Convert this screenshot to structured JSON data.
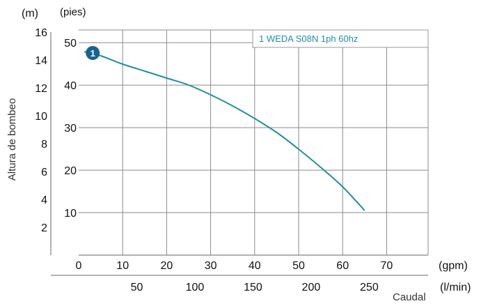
{
  "chart_data": {
    "type": "line",
    "ylabel": "Altura de bombeo",
    "xlabel": "Caudal",
    "y_unit_primary": "(m)",
    "y_unit_secondary": "(pies)",
    "x_unit_primary": "(gpm)",
    "x_unit_secondary": "(l/min)",
    "y_primary_ticks": [
      "2",
      "4",
      "6",
      "8",
      "10",
      "12",
      "14",
      "16"
    ],
    "y_secondary_ticks": [
      "10",
      "20",
      "30",
      "40",
      "50"
    ],
    "x_primary_ticks": [
      "0",
      "10",
      "20",
      "30",
      "40",
      "50",
      "60",
      "70"
    ],
    "x_secondary_ticks": [
      "50",
      "100",
      "150",
      "200",
      "250"
    ],
    "x_range_gpm": [
      0,
      80
    ],
    "y_range_m": [
      0,
      16
    ],
    "grid": true,
    "legend": {
      "position": "top-right",
      "label": "1 WEDA S08N 1ph 60hz"
    },
    "series": [
      {
        "marker_label": "1",
        "color": "#1f8fa0",
        "x": [
          1.3,
          5,
          10,
          15,
          20,
          25,
          30,
          35,
          40,
          45,
          50,
          55,
          60,
          65
        ],
        "y": [
          14.6,
          14.3,
          13.7,
          13.2,
          12.7,
          12.2,
          11.5,
          10.7,
          9.8,
          8.8,
          7.6,
          6.3,
          4.9,
          3.2
        ]
      }
    ]
  }
}
